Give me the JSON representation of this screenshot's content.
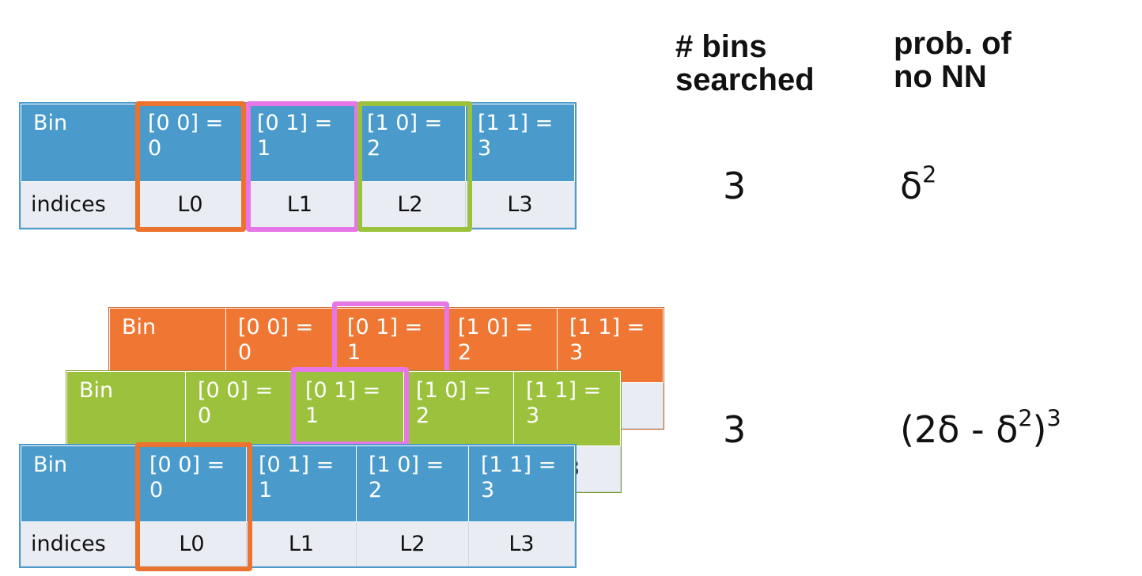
{
  "headers": {
    "bins_line1": "# bins",
    "bins_line2": "searched",
    "prob_line1": "prob. of",
    "prob_line2": "no NN"
  },
  "tables": {
    "bin_label": "Bin",
    "indices_label": "indices",
    "bins": [
      "[0 0] =\n0",
      "[0 1] =\n1",
      "[1 0] =\n2",
      "[1 1] =\n3"
    ],
    "indices": [
      "L0",
      "L1",
      "L2",
      "L3"
    ]
  },
  "rows": [
    {
      "bins_searched": "3",
      "prob_base": "δ",
      "prob_exp": "2"
    },
    {
      "bins_searched": "3",
      "prob_open": "(2δ - δ",
      "prob_exp_inner": "2",
      "prob_close": ")",
      "prob_exp_outer": "3"
    }
  ],
  "colors": {
    "blue": "#4a9bcc",
    "orange": "#ef7733",
    "green": "#9cc23d",
    "pink": "#e777e6",
    "highlight_orange": "#ec722f",
    "highlight_green": "#9cc23d",
    "index_row_bg": "#e9edf3"
  }
}
